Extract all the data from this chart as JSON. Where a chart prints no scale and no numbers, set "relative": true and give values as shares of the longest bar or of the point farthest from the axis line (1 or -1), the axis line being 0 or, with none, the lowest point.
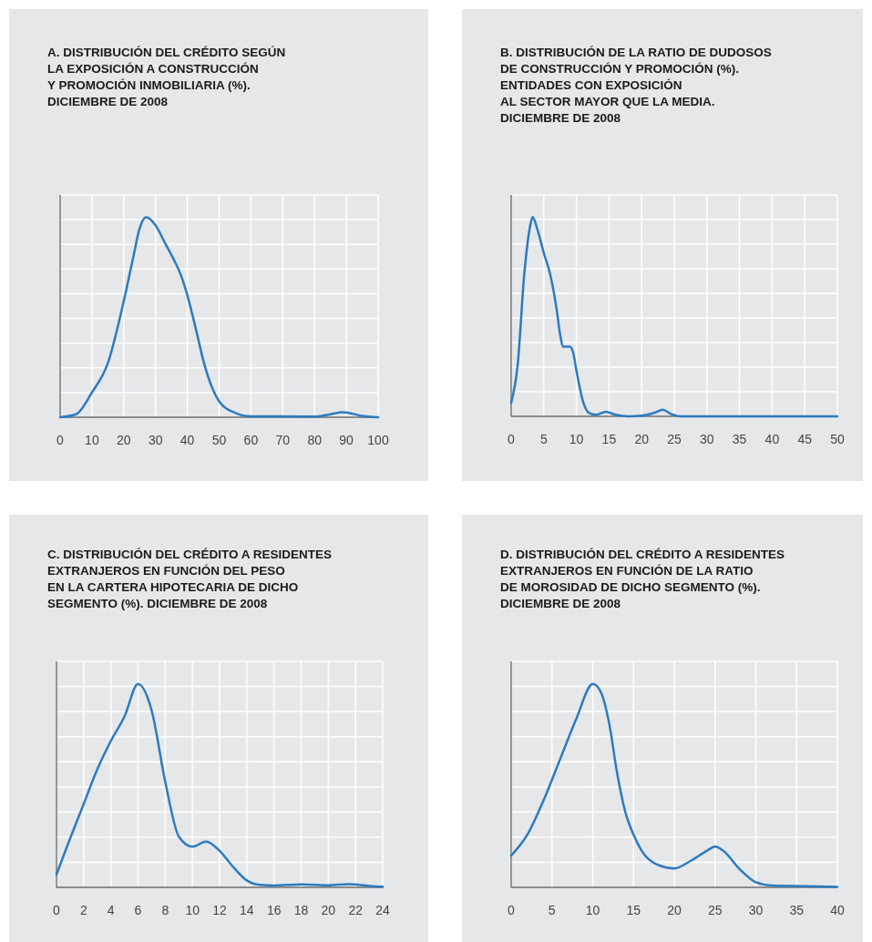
{
  "chart_data": [
    {
      "type": "line",
      "title": "A. DISTRIBUCIÓN DEL CRÉDITO SEGÚN\nLA EXPOSICIÓN A CONSTRUCCIÓN\nY PROMOCIÓN INMOBILIARIA (%).\nDICIEMBRE DE 2008",
      "relative": true,
      "grid": true,
      "xlim": [
        0,
        100
      ],
      "xticks": [
        0,
        10,
        20,
        30,
        40,
        50,
        60,
        70,
        80,
        90,
        100
      ],
      "series": [
        {
          "color": "#2b7bbf",
          "x": [
            0,
            5,
            10,
            15,
            20,
            23,
            25,
            27,
            30,
            33,
            36,
            38,
            40,
            43,
            45,
            48,
            50,
            55,
            60,
            70,
            80,
            85,
            89,
            95,
            100
          ],
          "values": [
            0,
            0.015,
            0.124,
            0.27,
            0.58,
            0.8,
            0.944,
            1,
            0.96,
            0.87,
            0.78,
            0.71,
            0.61,
            0.42,
            0.285,
            0.14,
            0.08,
            0.022,
            0.004,
            0.004,
            0.003,
            0.015,
            0.025,
            0.007,
            0
          ]
        }
      ]
    },
    {
      "type": "line",
      "title": "B. DISTRIBUCIÓN DE LA RATIO DE DUDOSOS\nDE CONSTRUCCIÓN Y PROMOCIÓN (%).\nENTIDADES CON EXPOSICIÓN\nAL SECTOR MAYOR QUE LA MEDIA.\nDICIEMBRE DE 2008",
      "relative": true,
      "grid": true,
      "xlim": [
        0,
        50
      ],
      "xticks": [
        0,
        5,
        10,
        15,
        20,
        25,
        30,
        35,
        40,
        45,
        50
      ],
      "series": [
        {
          "color": "#2b7bbf",
          "x": [
            0,
            1,
            2,
            3,
            3.3,
            4,
            5,
            6,
            7,
            7.5,
            8,
            9,
            9.5,
            10,
            11,
            12,
            13,
            14.5,
            16,
            18,
            20,
            22,
            23.2,
            24.5,
            26,
            50
          ],
          "values": [
            0.068,
            0.26,
            0.71,
            0.97,
            1,
            0.94,
            0.82,
            0.71,
            0.53,
            0.41,
            0.35,
            0.35,
            0.32,
            0.23,
            0.076,
            0.015,
            0.008,
            0.023,
            0.008,
            0,
            0.003,
            0.018,
            0.033,
            0.012,
            0,
            0
          ]
        }
      ]
    },
    {
      "type": "line",
      "title": "C. DISTRIBUCIÓN DEL CRÉDITO A RESIDENTES\nEXTRANJEROS EN FUNCIÓN DEL PESO\nEN LA CARTERA HIPOTECARIA DE DICHO\nSEGMENTO (%). DICIEMBRE DE 2008",
      "relative": true,
      "grid": true,
      "xlim": [
        0,
        24
      ],
      "xticks": [
        0,
        2,
        4,
        6,
        8,
        10,
        12,
        14,
        16,
        18,
        20,
        22,
        24
      ],
      "series": [
        {
          "color": "#2b7bbf",
          "x": [
            0,
            1,
            2,
            3,
            4,
            5,
            6,
            7,
            8,
            9,
            10,
            11,
            12,
            13,
            14,
            15,
            16,
            18,
            20,
            21.5,
            23,
            24
          ],
          "values": [
            0.064,
            0.24,
            0.41,
            0.58,
            0.72,
            0.84,
            1,
            0.87,
            0.52,
            0.25,
            0.2,
            0.225,
            0.18,
            0.1,
            0.034,
            0.012,
            0.009,
            0.015,
            0.01,
            0.016,
            0.007,
            0.003
          ]
        }
      ]
    },
    {
      "type": "line",
      "title": "D. DISTRIBUCIÓN DEL CRÉDITO A RESIDENTES\nEXTRANJEROS EN FUNCIÓN DE LA RATIO\nDE MOROSIDAD DE DICHO SEGMENTO (%).\nDICIEMBRE DE 2008",
      "relative": true,
      "grid": true,
      "xlim": [
        0,
        40
      ],
      "xticks": [
        0,
        5,
        10,
        15,
        20,
        25,
        30,
        35,
        40
      ],
      "series": [
        {
          "color": "#2b7bbf",
          "x": [
            0,
            2,
            4,
            6,
            8,
            10,
            11,
            12,
            13,
            14,
            15,
            16,
            18,
            20,
            22,
            24,
            25,
            26,
            28,
            30,
            32,
            36,
            40
          ],
          "values": [
            0.156,
            0.26,
            0.43,
            0.63,
            0.83,
            1,
            0.96,
            0.81,
            0.56,
            0.37,
            0.26,
            0.18,
            0.11,
            0.093,
            0.13,
            0.18,
            0.2,
            0.18,
            0.09,
            0.025,
            0.009,
            0.006,
            0.002
          ]
        }
      ]
    }
  ]
}
